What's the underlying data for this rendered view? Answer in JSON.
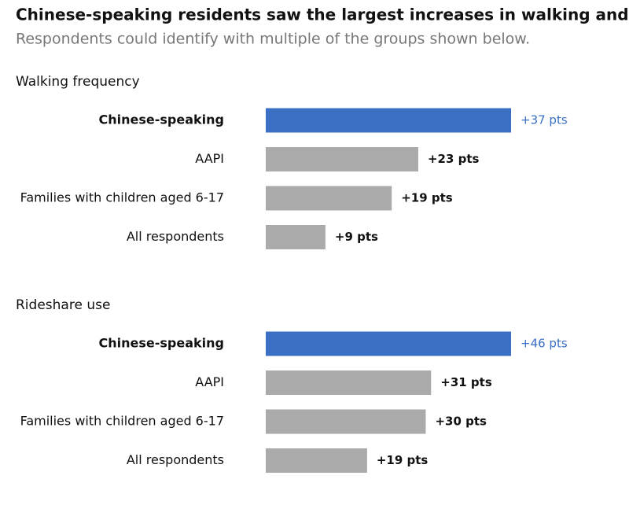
{
  "title": "Chinese-speaking residents saw the largest increases in walking and rideshare",
  "subtitle": "Respondents could identify with multiple of the groups shown below.",
  "chart_data": [
    {
      "type": "bar",
      "orientation": "horizontal",
      "title": "Walking frequency",
      "categories": [
        "Chinese-speaking",
        "AAPI",
        "Families with children aged 6-17",
        "All respondents"
      ],
      "values": [
        37,
        23,
        19,
        9
      ],
      "value_labels": [
        "+37 pts",
        "+23 pts",
        "+19 pts",
        "+9 pts"
      ],
      "colors": [
        "#3a6fc4",
        "#aaaaaa",
        "#aaaaaa",
        "#aaaaaa"
      ],
      "highlight": 0
    },
    {
      "type": "bar",
      "orientation": "horizontal",
      "title": "Rideshare use",
      "categories": [
        "Chinese-speaking",
        "AAPI",
        "Families with children aged 6-17",
        "All respondents"
      ],
      "values": [
        46,
        31,
        30,
        19
      ],
      "value_labels": [
        "+46 pts",
        "+31 pts",
        "+30 pts",
        "+19 pts"
      ],
      "colors": [
        "#3a6fc4",
        "#aaaaaa",
        "#aaaaaa",
        "#aaaaaa"
      ],
      "highlight": 0
    }
  ]
}
